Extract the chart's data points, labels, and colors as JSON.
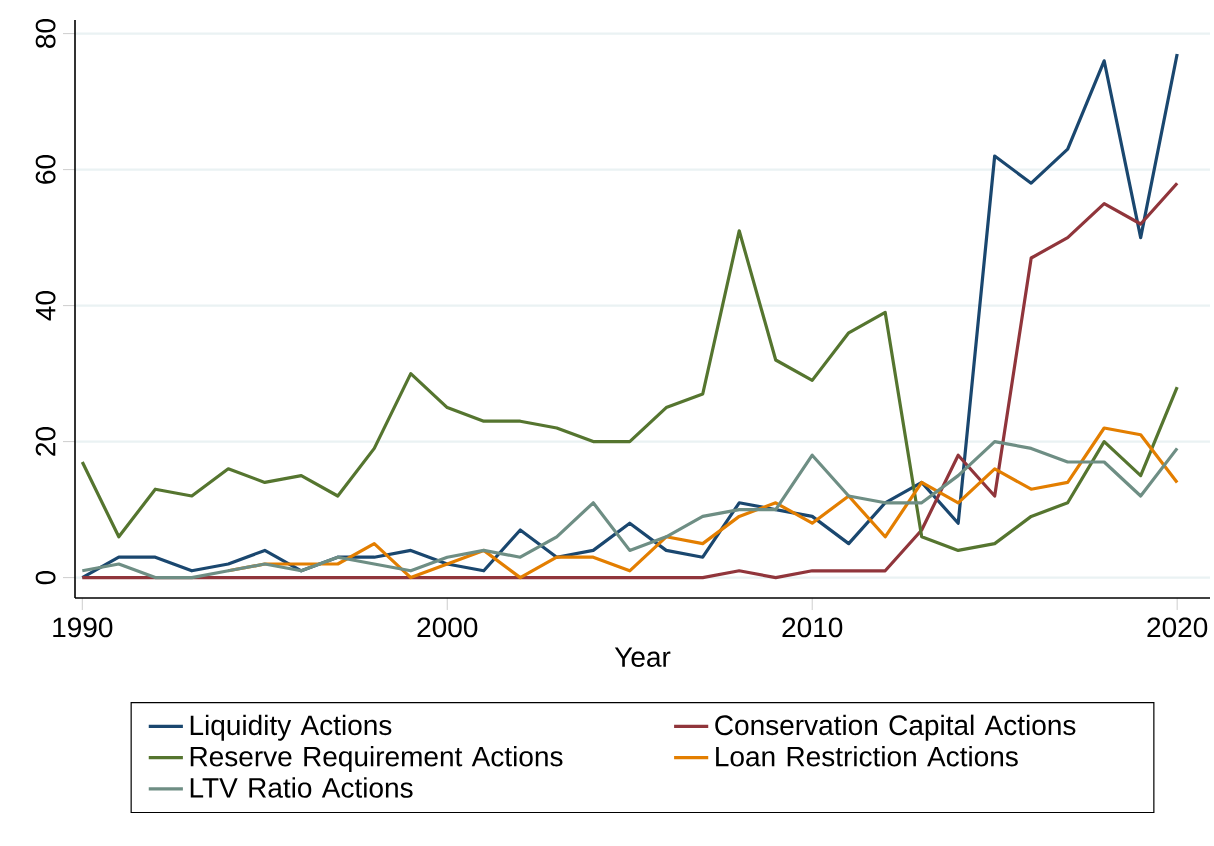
{
  "chart_data": {
    "type": "line",
    "xlabel": "Year",
    "x": [
      1990,
      1991,
      1992,
      1993,
      1994,
      1995,
      1996,
      1997,
      1998,
      1999,
      2000,
      2001,
      2002,
      2003,
      2004,
      2005,
      2006,
      2007,
      2008,
      2009,
      2010,
      2011,
      2012,
      2013,
      2014,
      2015,
      2016,
      2017,
      2018,
      2019,
      2020
    ],
    "series": [
      {
        "name": "Liquidity Actions",
        "color": "#1a476f",
        "values": [
          0,
          3,
          3,
          1,
          2,
          4,
          1,
          3,
          3,
          4,
          2,
          1,
          7,
          3,
          4,
          8,
          4,
          3,
          11,
          10,
          9,
          5,
          11,
          14,
          8,
          62,
          58,
          63,
          76,
          50,
          77
        ]
      },
      {
        "name": "Conservation Capital Actions",
        "color": "#90353b",
        "values": [
          0,
          0,
          0,
          0,
          0,
          0,
          0,
          0,
          0,
          0,
          0,
          0,
          0,
          0,
          0,
          0,
          0,
          0,
          1,
          0,
          1,
          1,
          1,
          7,
          18,
          12,
          47,
          50,
          55,
          52,
          58
        ]
      },
      {
        "name": "Reserve Requirement Actions",
        "color": "#55752f",
        "values": [
          17,
          6,
          13,
          12,
          16,
          14,
          15,
          12,
          19,
          30,
          25,
          23,
          23,
          22,
          20,
          20,
          25,
          27,
          51,
          32,
          29,
          36,
          39,
          6,
          4,
          5,
          9,
          11,
          20,
          15,
          28
        ]
      },
      {
        "name": "Loan Restriction Actions",
        "color": "#e37e00",
        "values": [
          null,
          null,
          null,
          null,
          1,
          2,
          2,
          2,
          5,
          0,
          2,
          4,
          0,
          3,
          3,
          1,
          6,
          5,
          9,
          11,
          8,
          12,
          6,
          14,
          11,
          16,
          13,
          14,
          22,
          21,
          14
        ]
      },
      {
        "name": "LTV Ratio Actions",
        "color": "#6e8e84",
        "values": [
          1,
          2,
          0,
          0,
          1,
          2,
          1,
          3,
          2,
          1,
          3,
          4,
          3,
          6,
          11,
          4,
          6,
          9,
          10,
          10,
          18,
          12,
          11,
          11,
          15,
          20,
          19,
          17,
          17,
          12,
          19
        ]
      }
    ],
    "xlim": [
      1989.8,
      2020.9
    ],
    "ylim": [
      -3,
      82
    ],
    "xticks": [
      1990,
      2000,
      2010,
      2020
    ],
    "yticks": [
      0,
      20,
      40,
      60,
      80
    ],
    "grid": "y",
    "legend": "bottom"
  }
}
